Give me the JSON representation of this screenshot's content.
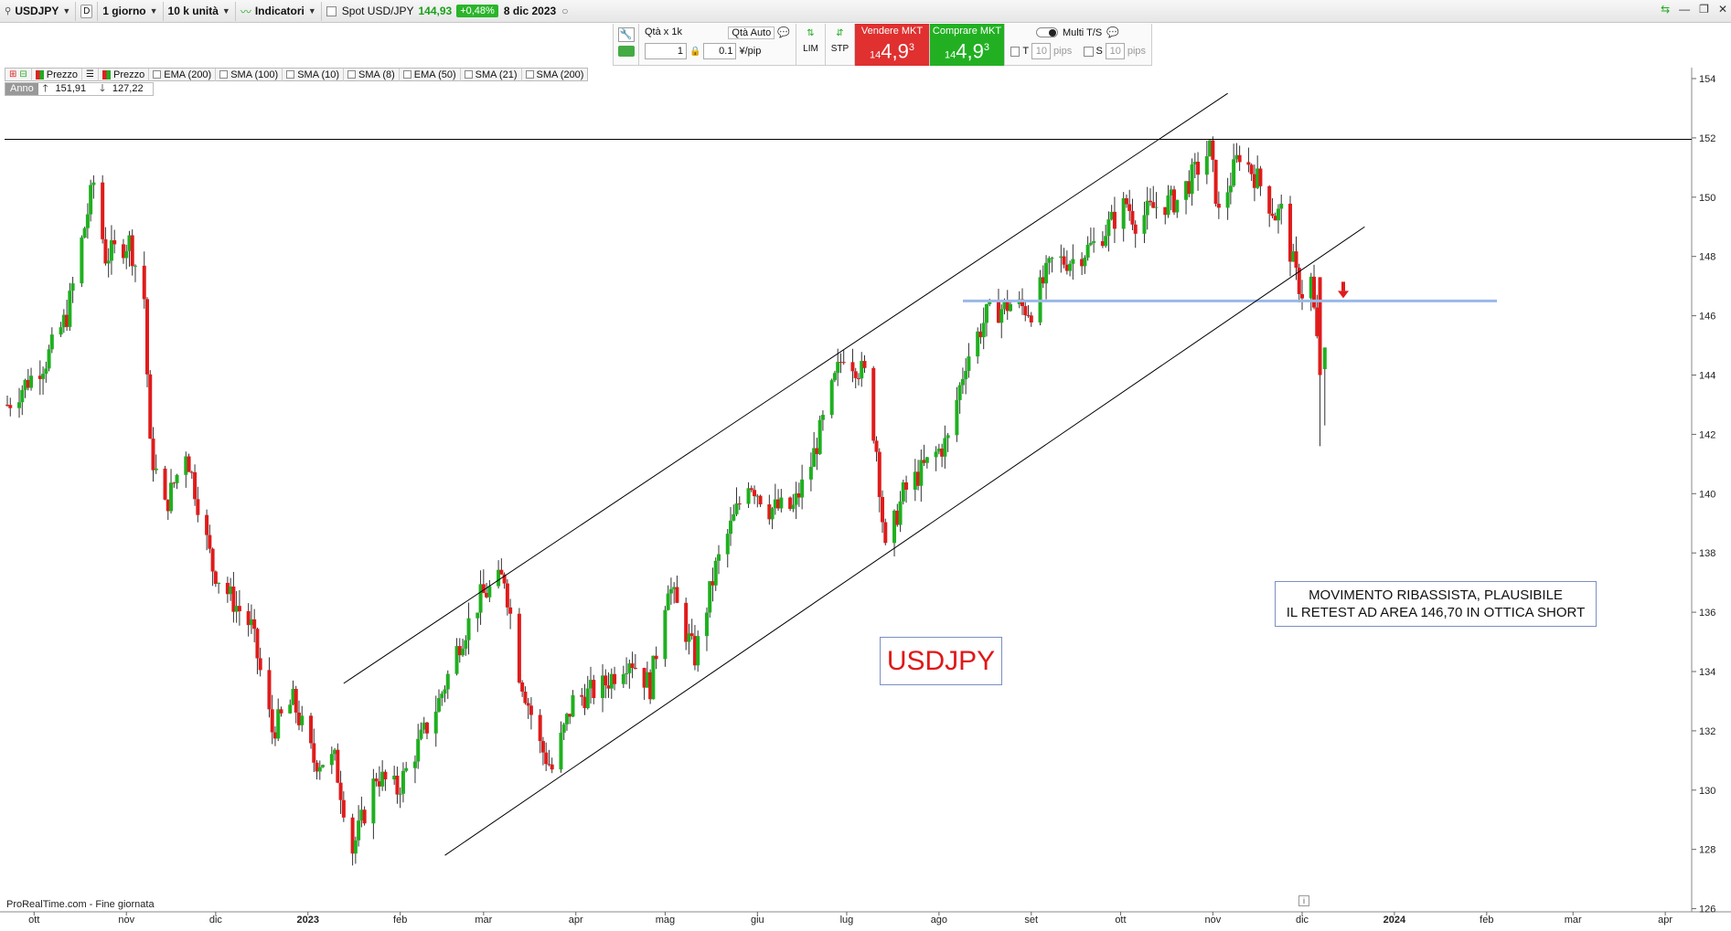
{
  "toolbar": {
    "symbol": "USDJPY",
    "period_letter": "D",
    "timeframe": "1 giorno",
    "units": "10 k unità",
    "indicators": "Indicatori",
    "instrument": "Spot USD/JPY",
    "price": "144,93",
    "change": "+0,48%",
    "date": "8 dic 2023"
  },
  "order": {
    "qty_label": "Qtà  x 1k",
    "qty_value": "1",
    "auto_label": "Qtà Auto",
    "pip_value": "0.1",
    "pip_unit": "¥/pip",
    "lim": "LIM",
    "stp": "STP",
    "sell_label": "Vendere MKT",
    "sell_big": "4,9",
    "sell_small": "14",
    "sell_sup": "3",
    "buy_label": "Comprare MKT",
    "buy_big": "4,9",
    "buy_small": "14",
    "buy_sup": "3",
    "multi_ts": "Multi T/S",
    "t_label": "T",
    "t_value": "10",
    "s_label": "S",
    "s_value": "10",
    "pips": "pips"
  },
  "indicators_row": [
    "Prezzo",
    "Prezzo",
    "EMA (200)",
    "SMA (100)",
    "SMA (10)",
    "SMA (8)",
    "EMA (50)",
    "SMA (21)",
    "SMA (200)"
  ],
  "range": {
    "label": "Anno",
    "high": "151,91",
    "low": "127,22"
  },
  "annotations": {
    "title_box": "USDJPY",
    "comment_line1": "MOVIMENTO RIBASSISTA, PLAUSIBILE",
    "comment_line2": "IL RETEST AD AREA 146,70 IN OTTICA SHORT"
  },
  "source": "ProRealTime.com - Fine giornata",
  "colors": {
    "up": "#1fb01f",
    "down": "#e01b1b",
    "support": "#9ab8e8",
    "sell": "#e03030",
    "buy": "#22b022"
  },
  "chart_data": {
    "type": "candlestick",
    "symbol": "USDJPY",
    "y_ticks": [
      154,
      152,
      150,
      148,
      146,
      144,
      142,
      140,
      138,
      136,
      134,
      132,
      130,
      128,
      126
    ],
    "ylim": [
      125.7,
      154.3
    ],
    "x_ticks": [
      "ott",
      "nov",
      "dic",
      "2023",
      "feb",
      "mar",
      "apr",
      "mag",
      "giu",
      "lug",
      "ago",
      "set",
      "ott",
      "nov",
      "dic",
      "2024",
      "feb",
      "mar",
      "apr"
    ],
    "horizontal_lines": [
      {
        "name": "resistance",
        "value": 151.95,
        "color": "#000000"
      },
      {
        "name": "retest-level",
        "value": 146.5,
        "color": "#9ab8e8"
      }
    ],
    "channel": {
      "upper_start": {
        "date": "2023-01-13",
        "value": 133.6
      },
      "upper_end": {
        "date": "2023-11-06",
        "value": 153.5
      },
      "lower_start": {
        "date": "2023-02-16",
        "value": 127.8
      },
      "lower_end": {
        "date": "2023-12-22",
        "value": 149.0
      }
    },
    "close_path": [
      [
        "2022-09-22",
        143.0
      ],
      [
        "2022-10-05",
        144.5
      ],
      [
        "2022-10-12",
        146.0
      ],
      [
        "2022-10-21",
        150.5
      ],
      [
        "2022-10-25",
        148.0
      ],
      [
        "2022-11-02",
        148.5
      ],
      [
        "2022-11-07",
        146.6
      ],
      [
        "2022-11-09",
        141.5
      ],
      [
        "2022-11-14",
        139.5
      ],
      [
        "2022-11-21",
        141.5
      ],
      [
        "2022-11-30",
        137.5
      ],
      [
        "2022-12-06",
        136.5
      ],
      [
        "2022-12-13",
        135.5
      ],
      [
        "2022-12-20",
        132.0
      ],
      [
        "2022-12-27",
        133.0
      ],
      [
        "2023-01-03",
        131.0
      ],
      [
        "2023-01-10",
        131.0
      ],
      [
        "2023-01-16",
        128.0
      ],
      [
        "2023-01-24",
        130.5
      ],
      [
        "2023-01-31",
        130.0
      ],
      [
        "2023-02-07",
        131.5
      ],
      [
        "2023-02-14",
        133.0
      ],
      [
        "2023-02-21",
        135.0
      ],
      [
        "2023-02-28",
        136.5
      ],
      [
        "2023-03-08",
        137.2
      ],
      [
        "2023-03-13",
        134.0
      ],
      [
        "2023-03-20",
        131.5
      ],
      [
        "2023-03-24",
        130.7
      ],
      [
        "2023-03-31",
        133.0
      ],
      [
        "2023-04-10",
        133.5
      ],
      [
        "2023-04-19",
        134.5
      ],
      [
        "2023-04-26",
        133.5
      ],
      [
        "2023-05-02",
        137.0
      ],
      [
        "2023-05-11",
        134.5
      ],
      [
        "2023-05-18",
        137.5
      ],
      [
        "2023-05-29",
        140.5
      ],
      [
        "2023-06-05",
        139.5
      ],
      [
        "2023-06-13",
        139.5
      ],
      [
        "2023-06-19",
        141.0
      ],
      [
        "2023-06-27",
        143.8
      ],
      [
        "2023-06-30",
        144.8
      ],
      [
        "2023-07-07",
        144.0
      ],
      [
        "2023-07-11",
        141.5
      ],
      [
        "2023-07-14",
        138.0
      ],
      [
        "2023-07-20",
        140.0
      ],
      [
        "2023-07-28",
        141.0
      ],
      [
        "2023-08-04",
        141.8
      ],
      [
        "2023-08-10",
        144.5
      ],
      [
        "2023-08-17",
        146.0
      ],
      [
        "2023-08-25",
        146.4
      ],
      [
        "2023-09-01",
        146.2
      ],
      [
        "2023-09-08",
        147.8
      ],
      [
        "2023-09-15",
        147.9
      ],
      [
        "2023-09-22",
        148.4
      ],
      [
        "2023-10-03",
        149.8
      ],
      [
        "2023-10-06",
        149.2
      ],
      [
        "2023-10-13",
        149.7
      ],
      [
        "2023-10-20",
        149.9
      ],
      [
        "2023-10-31",
        151.6
      ],
      [
        "2023-11-03",
        149.4
      ],
      [
        "2023-11-10",
        151.5
      ],
      [
        "2023-11-16",
        150.6
      ],
      [
        "2023-11-22",
        149.4
      ],
      [
        "2023-11-24",
        149.5
      ],
      [
        "2023-11-29",
        147.3
      ],
      [
        "2023-12-01",
        146.8
      ],
      [
        "2023-12-04",
        147.2
      ],
      [
        "2023-12-07",
        144.0
      ],
      [
        "2023-12-08",
        144.9
      ]
    ],
    "last_candle": {
      "date": "2023-12-08",
      "open": 144.2,
      "high": 144.9,
      "low": 142.3,
      "close": 144.93
    },
    "prior_low": {
      "date": "2023-12-07",
      "low": 141.6
    },
    "range_high": 151.91,
    "range_low": 127.22
  }
}
